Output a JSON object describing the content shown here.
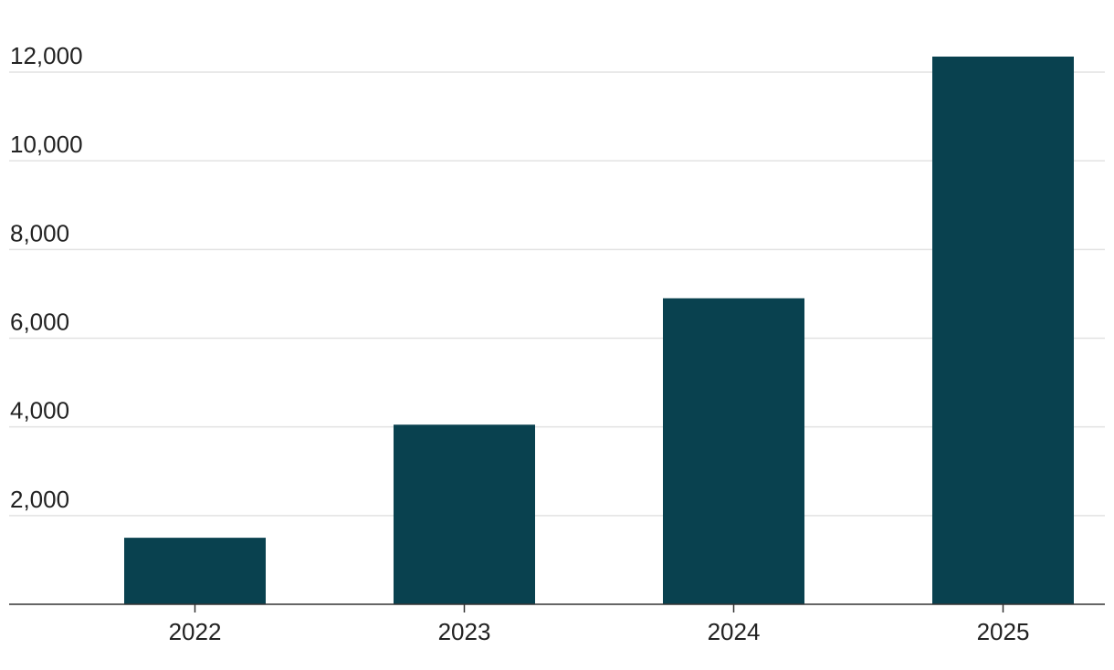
{
  "chart_data": {
    "type": "bar",
    "title": "",
    "xlabel": "",
    "ylabel": "",
    "categories": [
      "2022",
      "2023",
      "2024",
      "2025"
    ],
    "values": [
      1500,
      4050,
      6900,
      12350
    ],
    "ylim": [
      0,
      12000
    ],
    "yticks": [
      2000,
      4000,
      6000,
      8000,
      10000,
      12000
    ],
    "ytick_labels": [
      "2,000",
      "4,000",
      "6,000",
      "8,000",
      "10,000",
      "12,000"
    ],
    "grid": true,
    "bar_color": "#09414f",
    "legend": false
  }
}
